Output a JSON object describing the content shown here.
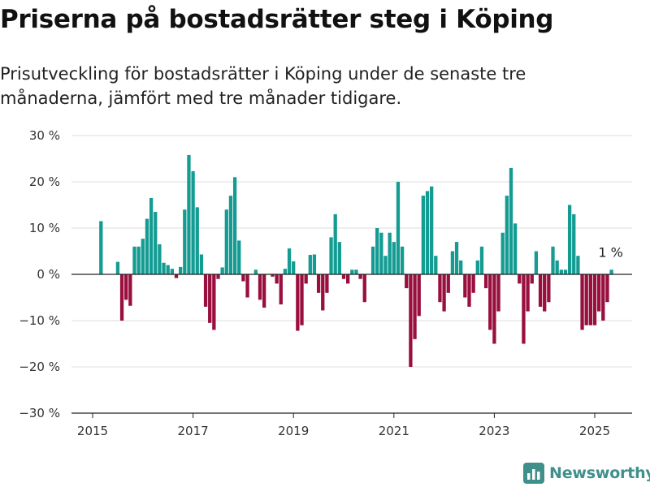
{
  "header": {
    "title": "Priserna på bostadsrätter steg i Köping",
    "subtitle": "Prisutveckling för bostadsrätter i Köping under de senaste tre månaderna, jämfört med tre månader tidigare."
  },
  "brand": {
    "name": "Newsworthy",
    "icon": "newsworthy-logo-icon",
    "color": "#3f8f8a"
  },
  "colors": {
    "positive": "#149c93",
    "negative": "#990f3d",
    "grid": "#dddddd",
    "axis": "#222222"
  },
  "chart_data": {
    "type": "bar",
    "x_unit": "month",
    "start": "2015-01",
    "end": "2025-04",
    "xticks": [
      "2015",
      "2017",
      "2019",
      "2021",
      "2023",
      "2025"
    ],
    "ylim": [
      -30,
      30
    ],
    "yticks": [
      "30 %",
      "20 %",
      "10 %",
      "0 %",
      "−10 %",
      "−20 %",
      "−30 %"
    ],
    "grid": true,
    "end_label": "1 %",
    "values": [
      0,
      0,
      11.5,
      0,
      0,
      0,
      2.7,
      -10,
      -5.5,
      -6.8,
      6,
      6,
      7.7,
      12,
      16.5,
      13.5,
      6.5,
      2.5,
      2,
      1.2,
      -0.8,
      1.6,
      14,
      25.8,
      22.3,
      14.5,
      4.3,
      -7,
      -10.5,
      -12,
      -1,
      1.5,
      14,
      17,
      21,
      7.3,
      -1.5,
      -5,
      0,
      1,
      -5.5,
      -7.2,
      0,
      -0.5,
      -2,
      -6.5,
      1.2,
      5.6,
      2.8,
      -12.2,
      -11,
      -2,
      4.2,
      4.3,
      -4,
      -7.8,
      -4,
      8,
      13,
      7,
      -1,
      -2,
      1,
      1,
      -1,
      -6,
      0,
      6,
      10,
      9,
      4,
      9,
      7,
      20,
      6,
      -3,
      -20,
      -14,
      -9,
      17,
      18,
      19,
      4,
      -6,
      -8,
      -4,
      5,
      7,
      3,
      -5,
      -7,
      -4,
      3,
      6,
      -3,
      -12,
      -15,
      -8,
      9,
      17,
      23,
      11,
      -2,
      -15,
      -8,
      -2,
      5,
      -7,
      -8,
      -6,
      6,
      3,
      1,
      1,
      15,
      13,
      4,
      -12,
      -11,
      -11,
      -11,
      -8,
      -10,
      -6,
      1
    ]
  }
}
